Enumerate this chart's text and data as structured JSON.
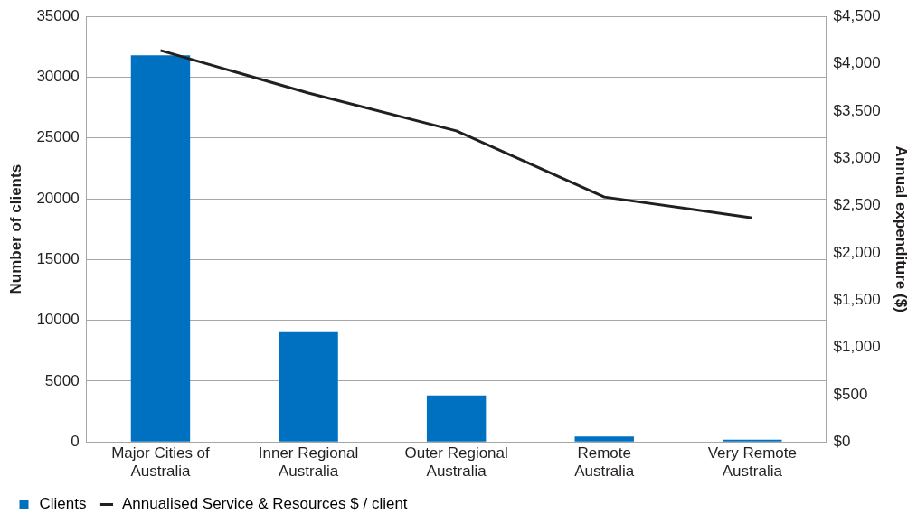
{
  "chart_data": {
    "type": "bar",
    "categories": [
      "Major Cities of Australia",
      "Inner Regional Australia",
      "Outer Regional Australia",
      "Remote Australia",
      "Very Remote Australia"
    ],
    "ylabel": "Number of clients",
    "y2label": "Annual expenditure ($)",
    "series": [
      {
        "name": "Clients",
        "color": "#0070c0",
        "values": [
          31800,
          9100,
          3820,
          440,
          180
        ]
      },
      {
        "name": "Annualised Service & Resources $ / client",
        "type": "line",
        "axis": "y2",
        "color": "#231f20",
        "values": [
          4140,
          3690,
          3290,
          2590,
          2370
        ]
      }
    ],
    "ylim": [
      0,
      35000
    ],
    "yticks": [
      0,
      5000,
      10000,
      15000,
      20000,
      25000,
      30000,
      35000
    ],
    "y2lim": [
      0,
      4500
    ],
    "y2ticks": [
      {
        "value": 0,
        "label": "$0"
      },
      {
        "value": 500,
        "label": "$500"
      },
      {
        "value": 1000,
        "label": "$1,000"
      },
      {
        "value": 1500,
        "label": "$1,500"
      },
      {
        "value": 2000,
        "label": "$2,000"
      },
      {
        "value": 2500,
        "label": "$2,500"
      },
      {
        "value": 3000,
        "label": "$3,000"
      },
      {
        "value": 3500,
        "label": "$3,500"
      },
      {
        "value": 4000,
        "label": "$4,000"
      },
      {
        "value": 4500,
        "label": "$4,500"
      }
    ],
    "grid": "y",
    "legend": "bottom",
    "marker": "none"
  }
}
